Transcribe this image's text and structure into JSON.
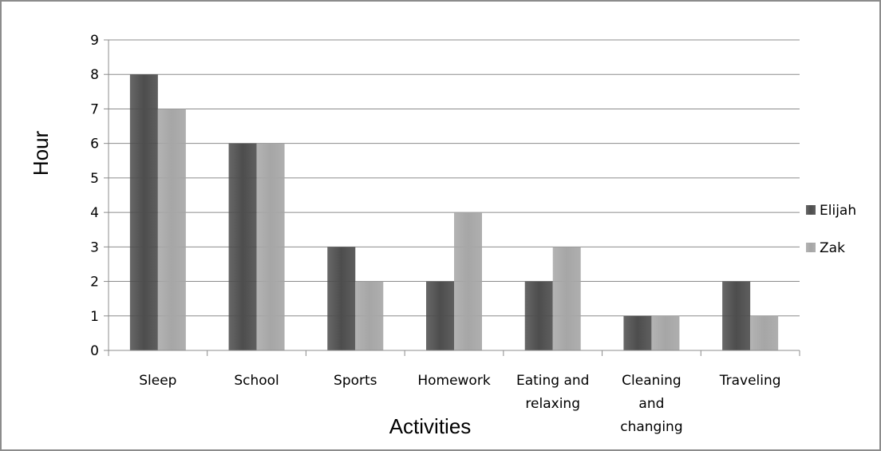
{
  "chart_data": {
    "type": "bar",
    "categories": [
      [
        "Sleep"
      ],
      [
        "School"
      ],
      [
        "Sports"
      ],
      [
        "Homework"
      ],
      [
        "Eating and",
        "relaxing"
      ],
      [
        "Cleaning",
        "and",
        "changing"
      ],
      [
        "Traveling"
      ]
    ],
    "series": [
      {
        "name": "Elijah",
        "values": [
          8,
          6,
          3,
          2,
          2,
          1,
          2
        ],
        "color": "#4d4d4d"
      },
      {
        "name": "Zak",
        "values": [
          7,
          6,
          2,
          4,
          3,
          1,
          1
        ],
        "color": "#a6a6a6"
      }
    ],
    "xlabel": "Activities",
    "ylabel": "Hour",
    "ylim": [
      0,
      9
    ],
    "yticks": [
      0,
      1,
      2,
      3,
      4,
      5,
      6,
      7,
      8,
      9
    ],
    "grid": true,
    "legend_position": "right"
  }
}
